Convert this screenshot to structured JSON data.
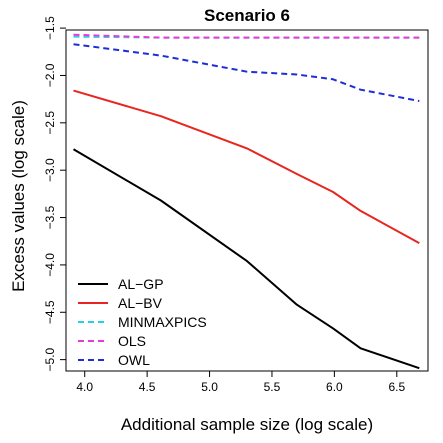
{
  "chart_data": {
    "type": "line",
    "title": "Scenario 6",
    "xlabel": "Additional sample size (log scale)",
    "ylabel": "Excess values (log scale)",
    "xlim": [
      3.85,
      6.75
    ],
    "ylim": [
      -5.12,
      -1.52
    ],
    "xticks": [
      "4.0",
      "4.5",
      "5.0",
      "5.5",
      "6.0",
      "6.5"
    ],
    "yticks": [
      "-1.5",
      "-2.0",
      "-2.5",
      "-3.0",
      "-3.5",
      "-4.0",
      "-4.5",
      "-5.0"
    ],
    "legend_position": "bottom-left",
    "series": [
      {
        "name": "AL−GP",
        "color": "#000000",
        "dash": "solid",
        "x": [
          3.91,
          4.61,
          5.3,
          5.7,
          5.99,
          6.21,
          6.68
        ],
        "y": [
          -2.78,
          -3.32,
          -3.96,
          -4.42,
          -4.67,
          -4.88,
          -5.09
        ]
      },
      {
        "name": "AL−BV",
        "color": "#e8251f",
        "dash": "solid",
        "x": [
          3.91,
          4.61,
          5.3,
          5.7,
          5.99,
          6.21,
          6.68
        ],
        "y": [
          -2.16,
          -2.43,
          -2.77,
          -3.04,
          -3.23,
          -3.43,
          -3.77
        ]
      },
      {
        "name": "MINMAXPICS",
        "color": "#22d3df",
        "dash": "dashed",
        "x": [
          3.91,
          4.61,
          5.3,
          5.7,
          5.99,
          6.21,
          6.68
        ],
        "y": [
          -1.59,
          -1.6,
          -1.6,
          -1.6,
          -1.6,
          -1.6,
          -1.6
        ]
      },
      {
        "name": "OLS",
        "color": "#e83ad8",
        "dash": "dashed",
        "x": [
          3.91,
          4.61,
          5.3,
          5.7,
          5.99,
          6.21,
          6.68
        ],
        "y": [
          -1.57,
          -1.6,
          -1.6,
          -1.6,
          -1.6,
          -1.6,
          -1.6
        ]
      },
      {
        "name": "OWL",
        "color": "#1f2fd6",
        "dash": "dashed",
        "x": [
          3.91,
          4.61,
          5.3,
          5.7,
          5.99,
          6.21,
          6.68
        ],
        "y": [
          -1.67,
          -1.79,
          -1.96,
          -1.99,
          -2.04,
          -2.15,
          -2.27
        ]
      }
    ]
  }
}
